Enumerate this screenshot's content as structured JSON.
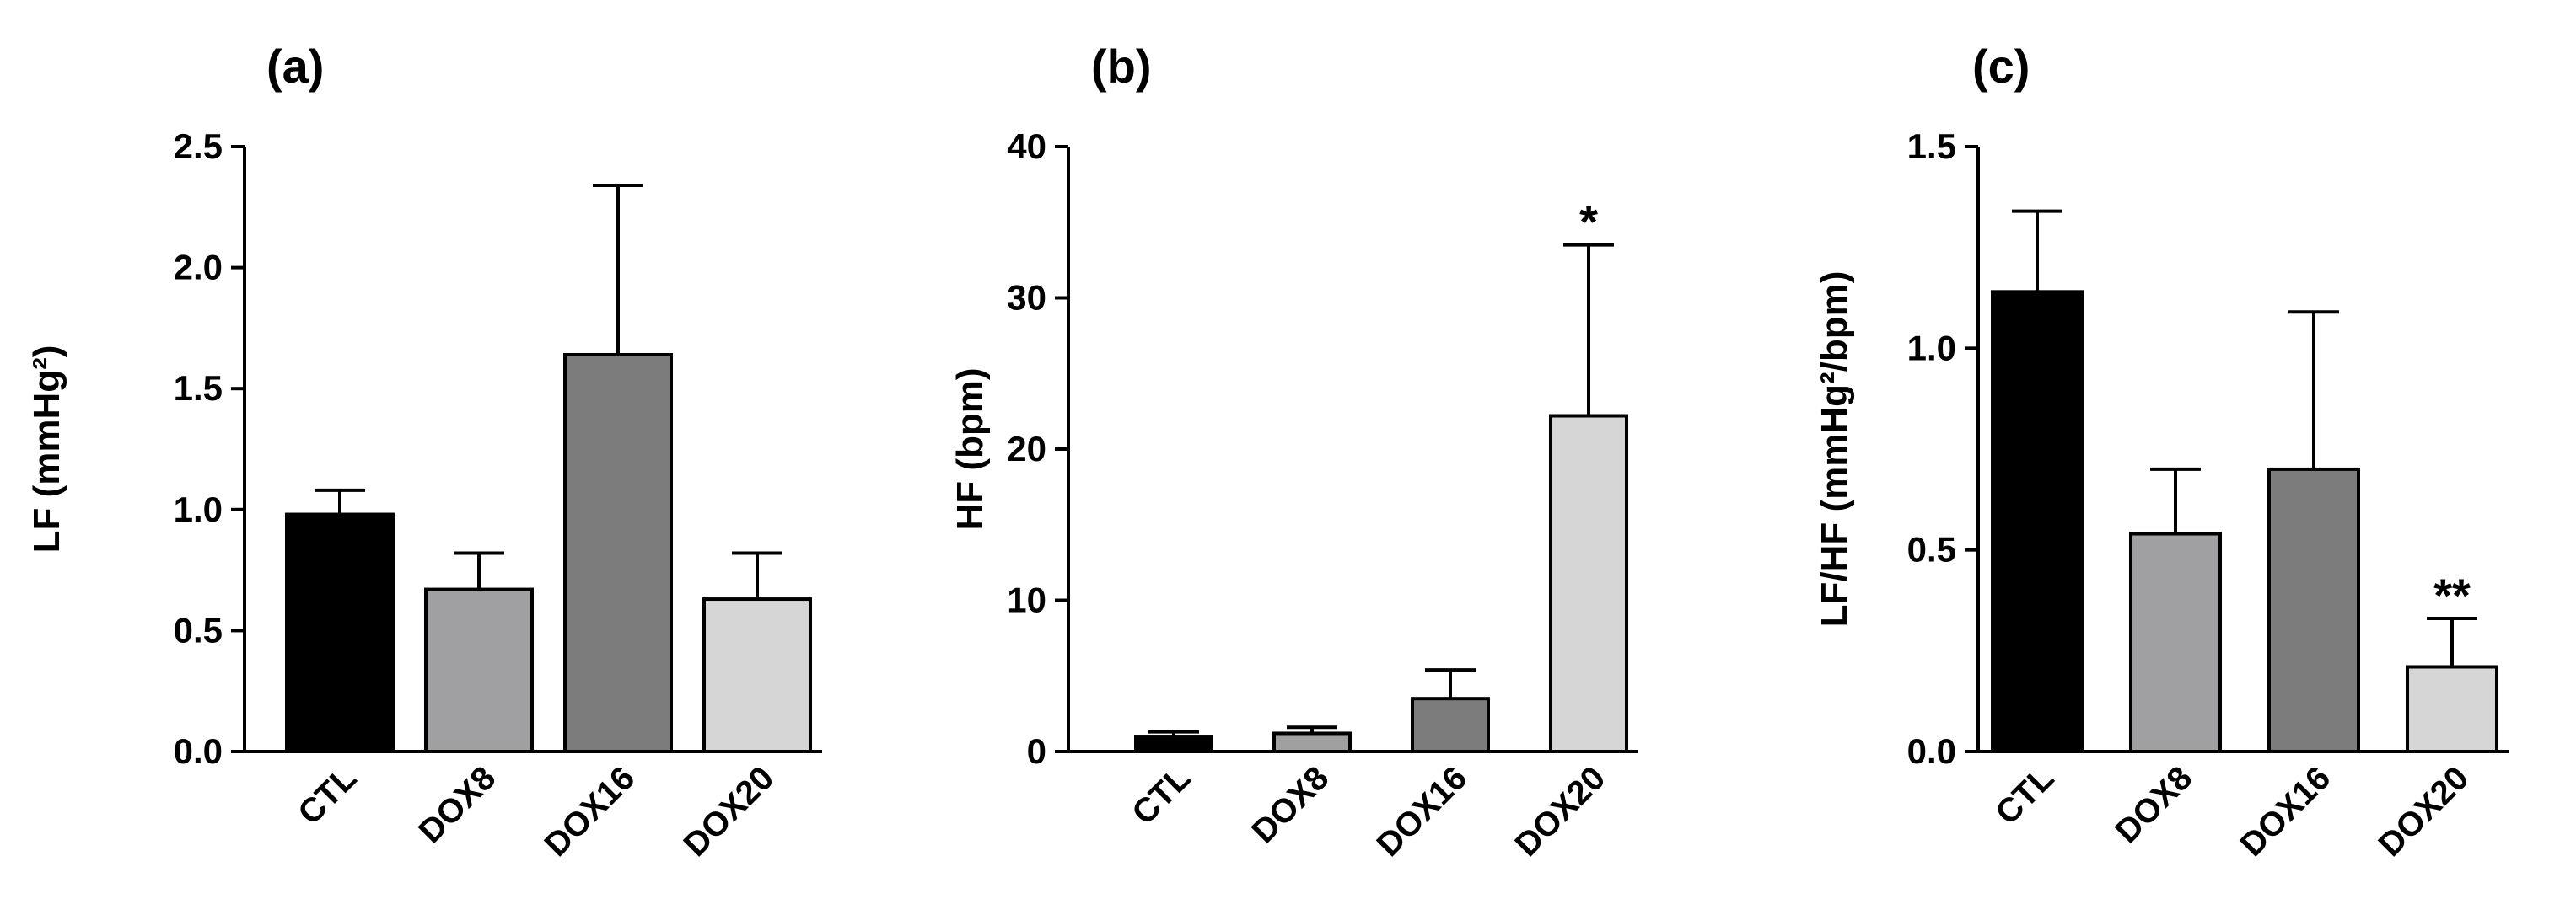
{
  "chart_data": [
    {
      "type": "bar",
      "panel_label": "(a)",
      "ylabel": "LF (mmHg²)",
      "ylim": [
        0,
        2.5
      ],
      "yticks": [
        "0.0",
        "0.5",
        "1.0",
        "1.5",
        "2.0",
        "2.5"
      ],
      "yticks_values": [
        0,
        0.5,
        1.0,
        1.5,
        2.0,
        2.5
      ],
      "categories": [
        "CTL",
        "DOX8",
        "DOX16",
        "DOX20"
      ],
      "values": [
        0.98,
        0.67,
        1.64,
        0.63
      ],
      "errors": [
        0.1,
        0.15,
        0.7,
        0.19
      ],
      "colors": [
        "#000000",
        "#a0a0a3",
        "#7c7c7c",
        "#d6d6d6"
      ],
      "significance": [
        "",
        "",
        "",
        ""
      ]
    },
    {
      "type": "bar",
      "panel_label": "(b)",
      "ylabel": "HF (bpm)",
      "ylim": [
        0,
        40
      ],
      "yticks": [
        "0",
        "10",
        "20",
        "30",
        "40"
      ],
      "yticks_values": [
        0,
        10,
        20,
        30,
        40
      ],
      "categories": [
        "CTL",
        "DOX8",
        "DOX16",
        "DOX20"
      ],
      "values": [
        1.0,
        1.2,
        3.5,
        22.2
      ],
      "errors": [
        0.3,
        0.4,
        1.9,
        11.3
      ],
      "colors": [
        "#000000",
        "#a0a0a3",
        "#7c7c7c",
        "#d6d6d6"
      ],
      "significance": [
        "",
        "",
        "",
        "*"
      ]
    },
    {
      "type": "bar",
      "panel_label": "(c)",
      "ylabel": "LF/HF (mmHg²/bpm)",
      "ylim": [
        0,
        1.5
      ],
      "yticks": [
        "0.0",
        "0.5",
        "1.0",
        "1.5"
      ],
      "yticks_values": [
        0,
        0.5,
        1.0,
        1.5
      ],
      "categories": [
        "CTL",
        "DOX8",
        "DOX16",
        "DOX20"
      ],
      "values": [
        1.14,
        0.54,
        0.7,
        0.21
      ],
      "errors": [
        0.2,
        0.16,
        0.39,
        0.12
      ],
      "colors": [
        "#000000",
        "#a0a0a3",
        "#7c7c7c",
        "#d6d6d6"
      ],
      "significance": [
        "",
        "",
        "",
        "**"
      ]
    }
  ]
}
